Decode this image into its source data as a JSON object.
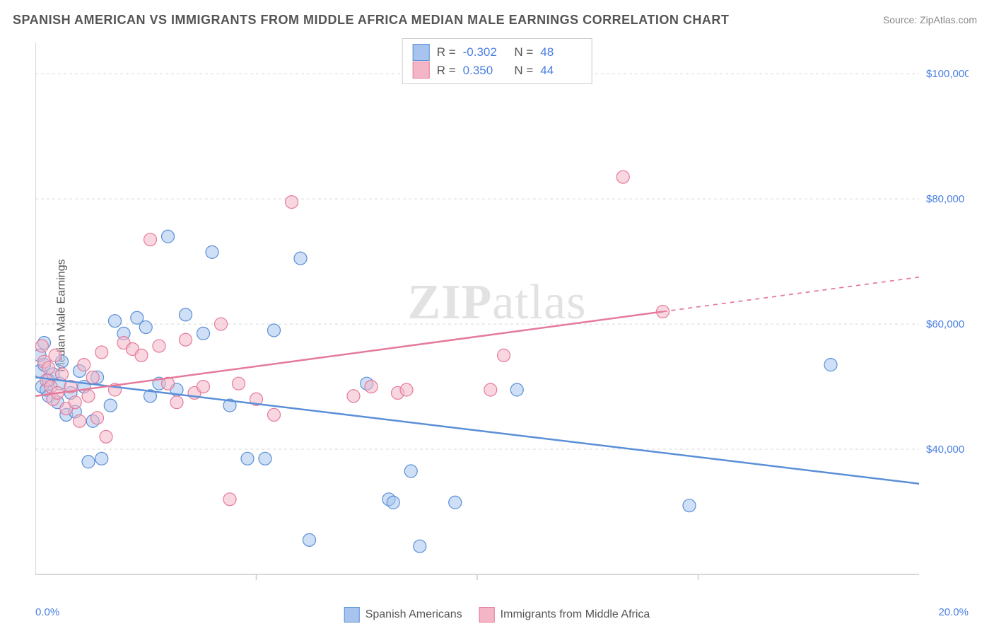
{
  "title": "SPANISH AMERICAN VS IMMIGRANTS FROM MIDDLE AFRICA MEDIAN MALE EARNINGS CORRELATION CHART",
  "source": "Source: ZipAtlas.com",
  "ylabel": "Median Male Earnings",
  "watermark_zip": "ZIP",
  "watermark_atlas": "atlas",
  "chart": {
    "type": "scatter",
    "background_color": "#ffffff",
    "grid_color": "#d8d8d8",
    "axis_color": "#cccccc",
    "xlim": [
      0,
      20
    ],
    "ylim": [
      20000,
      105000
    ],
    "x_tick_labels": [
      "0.0%",
      "20.0%"
    ],
    "y_ticks": [
      40000,
      60000,
      80000,
      100000
    ],
    "y_tick_labels": [
      "$40,000",
      "$60,000",
      "$80,000",
      "$100,000"
    ],
    "tick_label_color": "#4a7fe0",
    "tick_label_fontsize": 15,
    "x_minor_ticks": [
      5,
      10,
      15
    ],
    "marker_radius": 9,
    "marker_opacity": 0.55,
    "line_width": 2.5
  },
  "series": [
    {
      "name": "Spanish Americans",
      "fill_color": "#a6c4ee",
      "stroke_color": "#5a8fd8",
      "stats": {
        "R": "-0.302",
        "N": "48"
      },
      "trend": {
        "x1": 0,
        "y1": 51500,
        "x2": 20,
        "y2": 34500,
        "dash_after_x": null
      },
      "points": [
        [
          0.1,
          55000
        ],
        [
          0.1,
          52500
        ],
        [
          0.15,
          50000
        ],
        [
          0.2,
          57000
        ],
        [
          0.2,
          53500
        ],
        [
          0.25,
          49500
        ],
        [
          0.3,
          51000
        ],
        [
          0.3,
          48500
        ],
        [
          0.4,
          52000
        ],
        [
          0.5,
          47500
        ],
        [
          0.55,
          50500
        ],
        [
          0.6,
          54000
        ],
        [
          0.7,
          45500
        ],
        [
          0.8,
          49000
        ],
        [
          0.9,
          46000
        ],
        [
          1.0,
          52500
        ],
        [
          1.1,
          50000
        ],
        [
          1.2,
          38000
        ],
        [
          1.3,
          44500
        ],
        [
          1.4,
          51500
        ],
        [
          1.5,
          38500
        ],
        [
          1.7,
          47000
        ],
        [
          1.8,
          60500
        ],
        [
          2.0,
          58500
        ],
        [
          2.3,
          61000
        ],
        [
          2.5,
          59500
        ],
        [
          2.6,
          48500
        ],
        [
          2.8,
          50500
        ],
        [
          3.0,
          74000
        ],
        [
          3.2,
          49500
        ],
        [
          3.4,
          61500
        ],
        [
          3.8,
          58500
        ],
        [
          4.0,
          71500
        ],
        [
          4.4,
          47000
        ],
        [
          4.8,
          38500
        ],
        [
          5.2,
          38500
        ],
        [
          5.4,
          59000
        ],
        [
          6.0,
          70500
        ],
        [
          6.2,
          25500
        ],
        [
          7.5,
          50500
        ],
        [
          8.0,
          32000
        ],
        [
          8.1,
          31500
        ],
        [
          8.5,
          36500
        ],
        [
          8.7,
          24500
        ],
        [
          9.5,
          31500
        ],
        [
          10.9,
          49500
        ],
        [
          14.8,
          31000
        ],
        [
          18.0,
          53500
        ]
      ]
    },
    {
      "name": "Immigrants from Middle Africa",
      "fill_color": "#f4b6c6",
      "stroke_color": "#e57a9a",
      "stats": {
        "R": "0.350",
        "N": "44"
      },
      "trend": {
        "x1": 0,
        "y1": 48500,
        "x2": 20,
        "y2": 67500,
        "dash_after_x": 14.2
      },
      "points": [
        [
          0.15,
          56500
        ],
        [
          0.2,
          54000
        ],
        [
          0.25,
          51000
        ],
        [
          0.3,
          53000
        ],
        [
          0.35,
          50000
        ],
        [
          0.4,
          48000
        ],
        [
          0.45,
          55000
        ],
        [
          0.5,
          49000
        ],
        [
          0.6,
          52000
        ],
        [
          0.7,
          46500
        ],
        [
          0.8,
          50000
        ],
        [
          0.9,
          47500
        ],
        [
          1.0,
          44500
        ],
        [
          1.1,
          53500
        ],
        [
          1.2,
          48500
        ],
        [
          1.3,
          51500
        ],
        [
          1.4,
          45000
        ],
        [
          1.5,
          55500
        ],
        [
          1.6,
          42000
        ],
        [
          1.8,
          49500
        ],
        [
          2.0,
          57000
        ],
        [
          2.2,
          56000
        ],
        [
          2.4,
          55000
        ],
        [
          2.6,
          73500
        ],
        [
          2.8,
          56500
        ],
        [
          3.0,
          50500
        ],
        [
          3.2,
          47500
        ],
        [
          3.4,
          57500
        ],
        [
          3.6,
          49000
        ],
        [
          3.8,
          50000
        ],
        [
          4.2,
          60000
        ],
        [
          4.4,
          32000
        ],
        [
          4.6,
          50500
        ],
        [
          5.0,
          48000
        ],
        [
          5.4,
          45500
        ],
        [
          5.8,
          79500
        ],
        [
          7.2,
          48500
        ],
        [
          7.6,
          50000
        ],
        [
          8.2,
          49000
        ],
        [
          8.4,
          49500
        ],
        [
          10.3,
          49500
        ],
        [
          10.6,
          55000
        ],
        [
          13.3,
          83500
        ],
        [
          14.2,
          62000
        ]
      ]
    }
  ]
}
